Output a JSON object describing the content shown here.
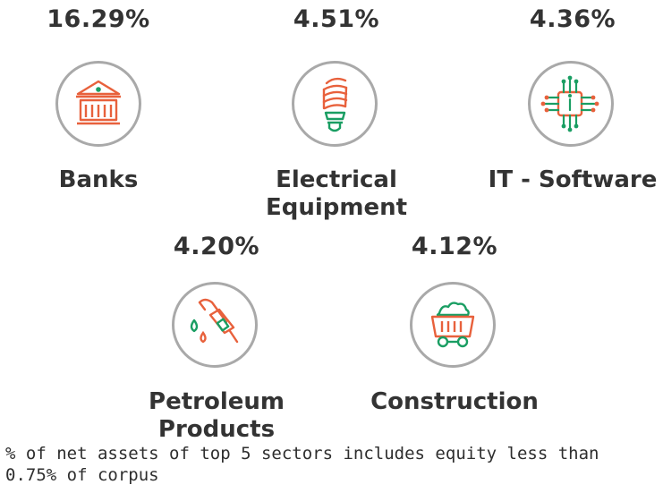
{
  "colors": {
    "accent_orange": "#e8613c",
    "accent_green": "#1a9e63",
    "circle_border": "#a9a9a9",
    "text": "#333333"
  },
  "sectors": [
    {
      "name": "Banks",
      "percent": "16.29%",
      "icon": "bank-building-icon"
    },
    {
      "name": "Electrical Equipment",
      "name_lines": [
        "Electrical",
        "Equipment"
      ],
      "percent": "4.51%",
      "icon": "light-bulb-icon"
    },
    {
      "name": "IT - Software",
      "percent": "4.36%",
      "icon": "circuit-chip-icon"
    },
    {
      "name": "Petroleum Products",
      "name_lines": [
        "Petroleum",
        "Products"
      ],
      "percent": "4.20%",
      "icon": "fuel-nozzle-icon"
    },
    {
      "name": "Construction",
      "percent": "4.12%",
      "icon": "loaded-cart-icon"
    }
  ],
  "footnote": "% of net assets of top 5 sectors includes equity less than 0.75% of corpus"
}
